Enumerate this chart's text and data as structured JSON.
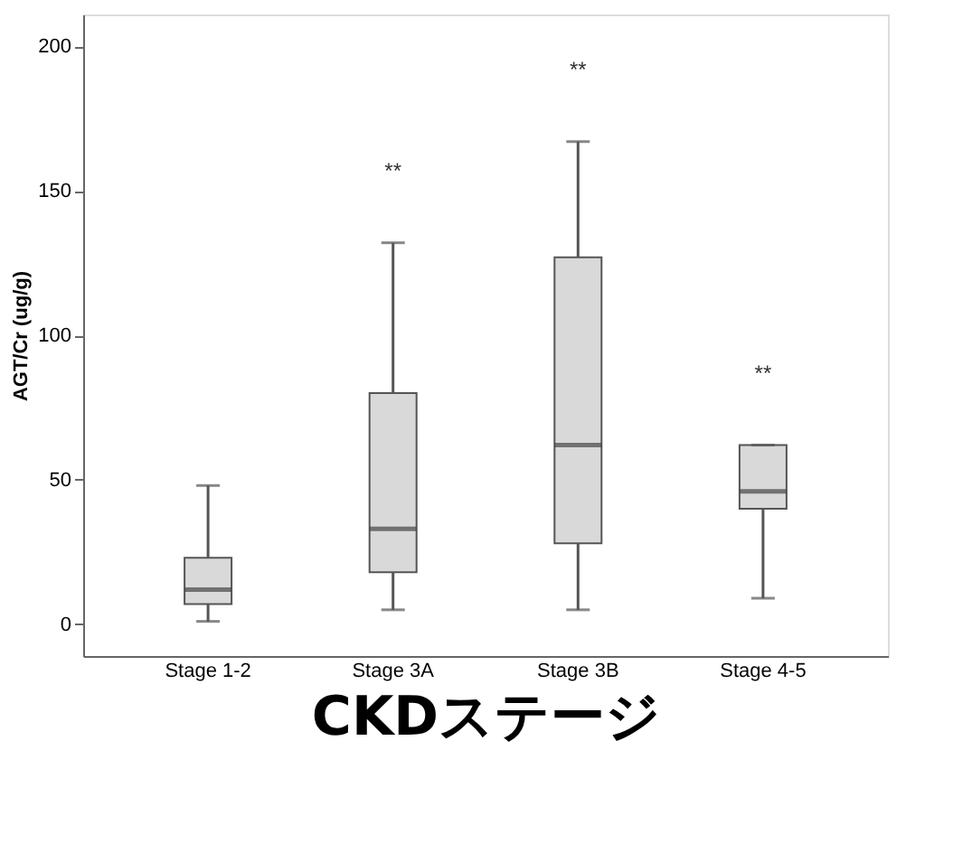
{
  "chart_data": {
    "type": "box",
    "categories": [
      "Stage 1-2",
      "Stage 3A",
      "Stage 3B",
      "Stage 4-5"
    ],
    "boxes": [
      {
        "low": 1,
        "q1": 7,
        "median": 12,
        "q3": 23,
        "high": 48
      },
      {
        "low": 5,
        "q1": 18,
        "median": 33,
        "q3": 80,
        "high": 132
      },
      {
        "low": 5,
        "q1": 28,
        "median": 62,
        "q3": 127,
        "high": 167
      },
      {
        "low": 9,
        "q1": 40,
        "median": 46,
        "q3": 62,
        "high": 62
      }
    ],
    "color": "#d9d9d9",
    "xlabel": "CKDステージ",
    "ylabel": "AGT/Cr (ug/g)",
    "ylim": [
      -11,
      211
    ],
    "yticks": [
      0,
      50,
      100,
      150,
      200
    ],
    "grid": false,
    "annotations": [
      "**",
      "**",
      "**"
    ]
  }
}
